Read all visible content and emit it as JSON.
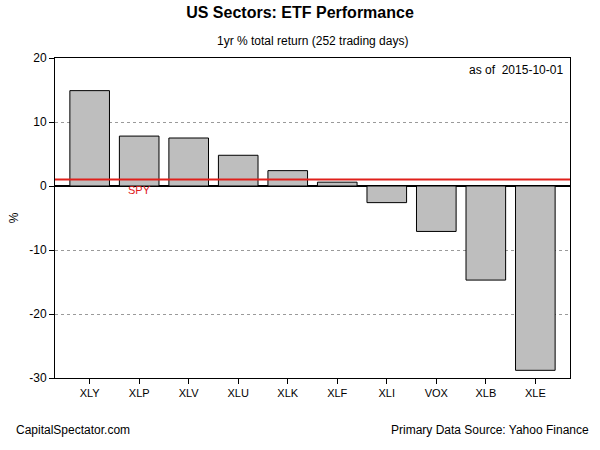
{
  "chart_data": {
    "type": "bar",
    "title": "US Sectors: ETF Performance",
    "subtitle": "1yr % total return (252 trading days)",
    "note": "as of  2015-10-01",
    "credit": "CapitalSpectator.com",
    "source": "Primary Data Source: Yahoo Finance",
    "y_label": "%",
    "categories": [
      "XLY",
      "XLP",
      "XLV",
      "XLU",
      "XLK",
      "XLF",
      "XLI",
      "VOX",
      "XLB",
      "XLE"
    ],
    "values": [
      14.9,
      7.8,
      7.5,
      4.8,
      2.4,
      0.6,
      -2.6,
      -7.1,
      -14.7,
      -28.8
    ],
    "color": "#bebebe",
    "reference_line": {
      "label": "SPY",
      "value": 1.0,
      "color": "#e0201b"
    },
    "ylim": [
      -30,
      20
    ],
    "yticks": [
      -30,
      -20,
      -10,
      0,
      10,
      20
    ],
    "grid": true
  }
}
